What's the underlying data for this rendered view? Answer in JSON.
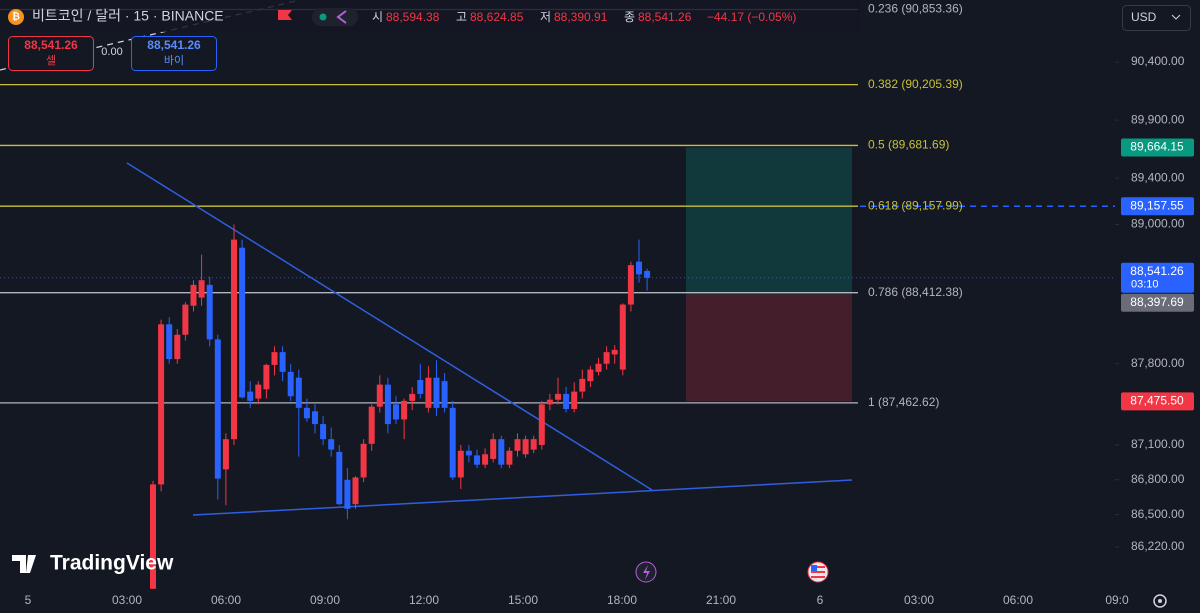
{
  "header": {
    "symbol": "비트코인 / 달러 · 15 · BINANCE",
    "ohlc": [
      {
        "key": "시",
        "value": "88,594.38"
      },
      {
        "key": "고",
        "value": "88,624.85"
      },
      {
        "key": "저",
        "value": "88,390.91"
      },
      {
        "key": "종",
        "value": "88,541.26"
      }
    ],
    "change": "−44.17 (−0.05%)"
  },
  "trade": {
    "sell_price": "88,541.26",
    "sell_label": "셀",
    "spread": "0.00",
    "buy_price": "88,541.26",
    "buy_label": "바이"
  },
  "currency": "USD",
  "brand": "TradingView",
  "chart_data": {
    "type": "candlestick",
    "up_color": "#f23645",
    "down_color": "#2962ff",
    "ylim": [
      85850,
      90935
    ],
    "yticks": [
      {
        "value": 90400,
        "label": "90,400.00"
      },
      {
        "value": 89900,
        "label": "89,900.00"
      },
      {
        "value": 89400,
        "label": "89,400.00"
      },
      {
        "value": 89000,
        "label": "89,000.00"
      },
      {
        "value": 87800,
        "label": "87,800.00"
      },
      {
        "value": 87100,
        "label": "87,100.00"
      },
      {
        "value": 86800,
        "label": "86,800.00"
      },
      {
        "value": 86500,
        "label": "86,500.00"
      },
      {
        "value": 86220,
        "label": "86,220.00"
      }
    ],
    "time_labels": [
      "5",
      "03:00",
      "06:00",
      "09:00",
      "12:00",
      "15:00",
      "18:00",
      "21:00",
      "6",
      "03:00",
      "06:00",
      "09:0"
    ],
    "open": [
      85860,
      86760,
      88140,
      87840,
      88050,
      88300,
      88370,
      88480,
      88010,
      86890,
      87150,
      88800,
      87560,
      87500,
      87580,
      87790,
      87900,
      87730,
      87680,
      87420,
      87390,
      87280,
      87150,
      87040,
      86800,
      86590,
      86820,
      87110,
      87430,
      87620,
      87450,
      87320,
      87480,
      87660,
      87420,
      87680,
      87650,
      87420,
      86820,
      87050,
      87010,
      86930,
      86980,
      87150,
      86930,
      87050,
      87020,
      87060,
      87100,
      87450,
      87490,
      87540,
      87410,
      87560,
      87650,
      87730,
      87800,
      87880,
      87750,
      88310,
      88680,
      88600
    ],
    "high": [
      86790,
      88180,
      88200,
      88100,
      88330,
      88520,
      88740,
      88550,
      88050,
      87200,
      89000,
      88870,
      87650,
      87650,
      87800,
      87950,
      87950,
      87800,
      87750,
      87500,
      87450,
      87350,
      87250,
      87100,
      86900,
      86830,
      87150,
      87450,
      87700,
      87680,
      87520,
      87500,
      87600,
      87800,
      87780,
      87830,
      87720,
      87480,
      87100,
      87100,
      87060,
      87070,
      87200,
      87180,
      87080,
      87200,
      87180,
      87180,
      87480,
      87540,
      87680,
      87600,
      87640,
      87750,
      87780,
      87850,
      87950,
      87960,
      88320,
      88680,
      88870,
      88620
    ],
    "low": [
      85880,
      86700,
      87800,
      87800,
      88000,
      88250,
      88300,
      87950,
      86630,
      86580,
      87100,
      87500,
      87420,
      87450,
      87500,
      87700,
      87650,
      87480,
      87000,
      87300,
      87200,
      87100,
      87000,
      86580,
      86460,
      86550,
      86780,
      87050,
      87380,
      87200,
      87280,
      87150,
      87400,
      87500,
      87380,
      87350,
      87380,
      86800,
      86720,
      86950,
      86900,
      86900,
      86950,
      86900,
      86900,
      87000,
      86990,
      87030,
      87060,
      87400,
      87450,
      87380,
      87380,
      87500,
      87600,
      87700,
      87750,
      87800,
      87700,
      88250,
      88500,
      88430
    ],
    "close": [
      86760,
      88140,
      87840,
      88050,
      88310,
      88480,
      88520,
      88010,
      86810,
      87150,
      88870,
      87510,
      87480,
      87620,
      87790,
      87900,
      87730,
      87520,
      87420,
      87330,
      87280,
      87150,
      87060,
      86590,
      86550,
      86820,
      87110,
      87430,
      87620,
      87280,
      87320,
      87480,
      87540,
      87540,
      87680,
      87420,
      87420,
      86820,
      87050,
      87010,
      86930,
      87020,
      87150,
      86930,
      87050,
      87150,
      87150,
      87150,
      87450,
      87490,
      87540,
      87410,
      87560,
      87670,
      87750,
      87800,
      87900,
      87920,
      88310,
      88650,
      88570,
      88541.26
    ],
    "fib_levels": [
      {
        "label": "0.236 (90,853.36)",
        "value": 90853.36,
        "color": "#b2b5be"
      },
      {
        "label": "0.382 (90,205.39)",
        "value": 90205.39,
        "color": "#c8c03a"
      },
      {
        "label": "0.5 (89,681.69)",
        "value": 89681.69,
        "color": "#c8c03a"
      },
      {
        "label": "0.618 (89,157.99)",
        "value": 89157.99,
        "color": "#c8c03a"
      },
      {
        "label": "0.786 (88,412.38)",
        "value": 88412.38,
        "color": "#b2b5be"
      },
      {
        "label": "1 (87,462.62)",
        "value": 87462.62,
        "color": "#b2b5be"
      }
    ],
    "price_labels": [
      {
        "label": "89,664.15",
        "value": 89664.15,
        "color": "#089981"
      },
      {
        "label": "89,157.55",
        "value": 89157.55,
        "color": "#2962ff"
      },
      {
        "label": "88,541.26",
        "sub": "03:10",
        "value": 88541.26,
        "color": "#2962ff"
      },
      {
        "label": "88,397.69",
        "value": 88397.69,
        "color": "#6a6d78"
      },
      {
        "label": "87,475.50",
        "value": 87475.5,
        "color": "#f23645"
      }
    ]
  }
}
